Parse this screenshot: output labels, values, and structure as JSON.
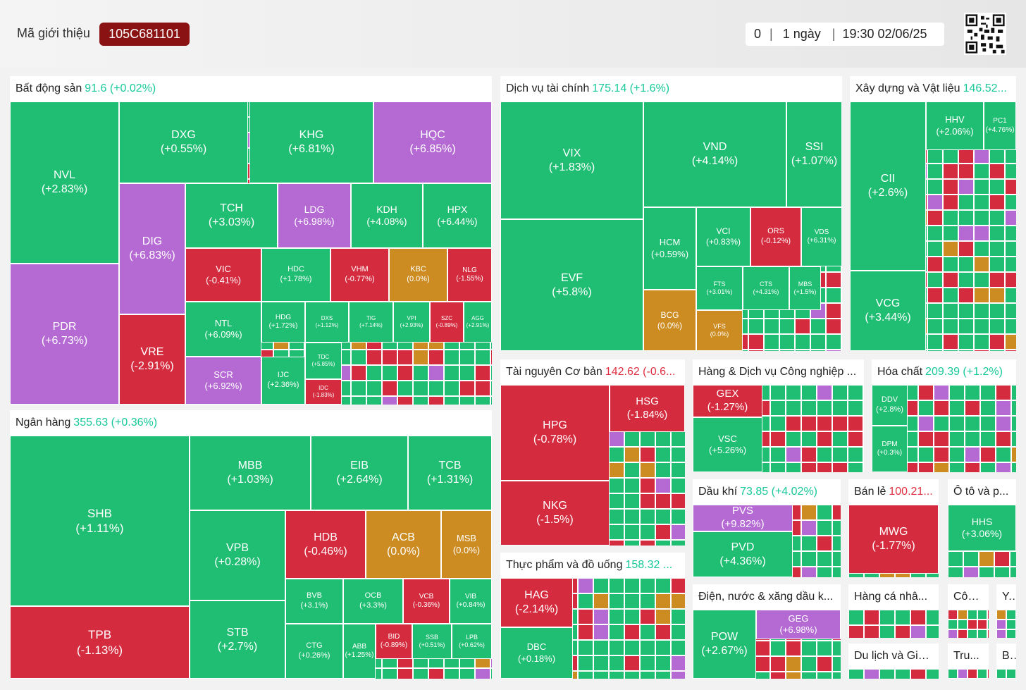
{
  "header": {
    "ref_label": "Mã giới thiệu",
    "ref_code": "105C681101",
    "count": "0",
    "period": "1 ngày",
    "datetime": "19:30 02/06/25"
  },
  "colors": {
    "up": "#1fbe73",
    "down": "#d42b3e",
    "ceiling": "#b569d3",
    "reference": "#cd8c22",
    "floor": "#4b90e0"
  },
  "sectors": [
    {
      "name": "Bất động sản",
      "value": "91.6 (+0.02%)",
      "dir": "up",
      "tiles": [
        {
          "t": "NVL",
          "v": "(+2.83%)",
          "c": "g"
        },
        {
          "t": "PDR",
          "v": "(+6.73%)",
          "c": "p"
        },
        {
          "t": "DXG",
          "v": "(+0.55%)",
          "c": "g"
        },
        {
          "t": "KHG",
          "v": "(+6.81%)",
          "c": "g"
        },
        {
          "t": "HQC",
          "v": "(+6.85%)",
          "c": "p"
        },
        {
          "t": "DIG",
          "v": "(+6.83%)",
          "c": "p"
        },
        {
          "t": "VRE",
          "v": "(-2.91%)",
          "c": "r"
        },
        {
          "t": "TCH",
          "v": "(+3.03%)",
          "c": "g"
        },
        {
          "t": "LDG",
          "v": "(+6.98%)",
          "c": "p"
        },
        {
          "t": "KDH",
          "v": "(+4.08%)",
          "c": "g"
        },
        {
          "t": "HPX",
          "v": "(+6.44%)",
          "c": "g"
        },
        {
          "t": "VIC",
          "v": "(-0.41%)",
          "c": "r"
        },
        {
          "t": "HDC",
          "v": "(+1.78%)",
          "c": "g"
        },
        {
          "t": "VHM",
          "v": "(-0.77%)",
          "c": "r"
        },
        {
          "t": "KBC",
          "v": "(0.0%)",
          "c": "y"
        },
        {
          "t": "NLG",
          "v": "(-1.55%)",
          "c": "r"
        },
        {
          "t": "NTL",
          "v": "(+6.09%)",
          "c": "g"
        },
        {
          "t": "HDG",
          "v": "(+1.72%)",
          "c": "g"
        },
        {
          "t": "DXS",
          "v": "(+1.12%)",
          "c": "g"
        },
        {
          "t": "TIG",
          "v": "(+7.14%)",
          "c": "g"
        },
        {
          "t": "VPI",
          "v": "(+2.93%)",
          "c": "g"
        },
        {
          "t": "SZC",
          "v": "(-0.89%)",
          "c": "r"
        },
        {
          "t": "AGG",
          "v": "(+2.91%)",
          "c": "g"
        },
        {
          "t": "SCR",
          "v": "(+6.92%)",
          "c": "p"
        },
        {
          "t": "IJC",
          "v": "(+2.36%)",
          "c": "g"
        },
        {
          "t": "TDC",
          "v": "(+5.85%)",
          "c": "g"
        },
        {
          "t": "IDC",
          "v": "(-1.83%)",
          "c": "r"
        }
      ]
    },
    {
      "name": "Ngân hàng",
      "value": "355.63 (+0.36%)",
      "dir": "up",
      "tiles": [
        {
          "t": "SHB",
          "v": "(+1.11%)",
          "c": "g"
        },
        {
          "t": "TPB",
          "v": "(-1.13%)",
          "c": "r"
        },
        {
          "t": "MBB",
          "v": "(+1.03%)",
          "c": "g"
        },
        {
          "t": "EIB",
          "v": "(+2.64%)",
          "c": "g"
        },
        {
          "t": "TCB",
          "v": "(+1.31%)",
          "c": "g"
        },
        {
          "t": "VPB",
          "v": "(+0.28%)",
          "c": "g"
        },
        {
          "t": "STB",
          "v": "(+2.7%)",
          "c": "g"
        },
        {
          "t": "HDB",
          "v": "(-0.46%)",
          "c": "r"
        },
        {
          "t": "ACB",
          "v": "(0.0%)",
          "c": "y"
        },
        {
          "t": "MSB",
          "v": "(0.0%)",
          "c": "y"
        },
        {
          "t": "BVB",
          "v": "(+3.1%)",
          "c": "g"
        },
        {
          "t": "OCB",
          "v": "(+3.3%)",
          "c": "g"
        },
        {
          "t": "VCB",
          "v": "(-0.36%)",
          "c": "r"
        },
        {
          "t": "VIB",
          "v": "(+0.84%)",
          "c": "g"
        },
        {
          "t": "CTG",
          "v": "(+0.26%)",
          "c": "g"
        },
        {
          "t": "ABB",
          "v": "(+1.25%)",
          "c": "g"
        },
        {
          "t": "BID",
          "v": "(-0.89%)",
          "c": "r"
        },
        {
          "t": "SSB",
          "v": "(+0.51%)",
          "c": "g"
        },
        {
          "t": "LPB",
          "v": "(+0.62%)",
          "c": "g"
        }
      ]
    },
    {
      "name": "Dịch vụ tài chính",
      "value": "175.14 (+1.6%)",
      "dir": "up",
      "tiles": [
        {
          "t": "VIX",
          "v": "(+1.83%)",
          "c": "g"
        },
        {
          "t": "EVF",
          "v": "(+5.8%)",
          "c": "g"
        },
        {
          "t": "VND",
          "v": "(+4.14%)",
          "c": "g"
        },
        {
          "t": "SSI",
          "v": "(+1.07%)",
          "c": "g"
        },
        {
          "t": "HCM",
          "v": "(+0.59%)",
          "c": "g"
        },
        {
          "t": "BCG",
          "v": "(0.0%)",
          "c": "y"
        },
        {
          "t": "VCI",
          "v": "(+0.83%)",
          "c": "g"
        },
        {
          "t": "ORS",
          "v": "(-0.12%)",
          "c": "r"
        },
        {
          "t": "VDS",
          "v": "(+6.31%)",
          "c": "g"
        },
        {
          "t": "FTS",
          "v": "(+3.01%)",
          "c": "g"
        },
        {
          "t": "CTS",
          "v": "(+4.31%)",
          "c": "g"
        },
        {
          "t": "MBS",
          "v": "(+1.5%)",
          "c": "g"
        },
        {
          "t": "VFS",
          "v": "(0.0%)",
          "c": "y"
        }
      ]
    },
    {
      "name": "Xây dựng và Vật liệu",
      "value": "146.52...",
      "dir": "up",
      "tiles": [
        {
          "t": "CII",
          "v": "(+2.6%)",
          "c": "g"
        },
        {
          "t": "VCG",
          "v": "(+3.44%)",
          "c": "g"
        },
        {
          "t": "HHV",
          "v": "(+2.06%)",
          "c": "g"
        },
        {
          "t": "PC1",
          "v": "(+4.76%)",
          "c": "g"
        }
      ]
    },
    {
      "name": "Tài nguyên Cơ bản",
      "value": "142.62 (-0.6...",
      "dir": "dn",
      "tiles": [
        {
          "t": "HPG",
          "v": "(-0.78%)",
          "c": "r"
        },
        {
          "t": "NKG",
          "v": "(-1.5%)",
          "c": "r"
        },
        {
          "t": "HSG",
          "v": "(-1.84%)",
          "c": "r"
        }
      ]
    },
    {
      "name": "Hàng & Dịch vụ Công nghiệp ...",
      "value": "",
      "dir": "up",
      "tiles": [
        {
          "t": "GEX",
          "v": "(-1.27%)",
          "c": "r"
        },
        {
          "t": "VSC",
          "v": "(+5.26%)",
          "c": "g"
        }
      ]
    },
    {
      "name": "Hóa chất",
      "value": "209.39 (+1.2%)",
      "dir": "up",
      "tiles": [
        {
          "t": "DDV",
          "v": "(+2.8%)",
          "c": "g"
        },
        {
          "t": "DPM",
          "v": "(+0.3%)",
          "c": "g"
        }
      ]
    },
    {
      "name": "Thực phẩm và đồ uống",
      "value": "158.32 ...",
      "dir": "up",
      "tiles": [
        {
          "t": "HAG",
          "v": "(-2.14%)",
          "c": "r"
        },
        {
          "t": "DBC",
          "v": "(+0.18%)",
          "c": "g"
        }
      ]
    },
    {
      "name": "Dầu khí",
      "value": "73.85 (+4.02%)",
      "dir": "up",
      "tiles": [
        {
          "t": "PVS",
          "v": "(+9.82%)",
          "c": "p"
        },
        {
          "t": "PVD",
          "v": "(+4.36%)",
          "c": "g"
        }
      ]
    },
    {
      "name": "Bán lẻ",
      "value": "100.21...",
      "dir": "dn",
      "tiles": [
        {
          "t": "MWG",
          "v": "(-1.77%)",
          "c": "r"
        }
      ]
    },
    {
      "name": "Ô tô và p...",
      "value": "",
      "dir": "up",
      "tiles": [
        {
          "t": "HHS",
          "v": "(+3.06%)",
          "c": "g"
        }
      ]
    },
    {
      "name": "Điện, nước & xăng dầu k...",
      "value": "",
      "dir": "up",
      "tiles": [
        {
          "t": "POW",
          "v": "(+2.67%)",
          "c": "g"
        },
        {
          "t": "GEG",
          "v": "(+6.98%)",
          "c": "p"
        }
      ]
    },
    {
      "name": "Hàng cá nhâ...",
      "value": "",
      "dir": "up",
      "tiles": []
    },
    {
      "name": "Côn...",
      "value": "",
      "dir": "up",
      "tiles": []
    },
    {
      "name": "Y...",
      "value": "",
      "dir": "up",
      "tiles": []
    },
    {
      "name": "Du lịch và Giả...",
      "value": "",
      "dir": "up",
      "tiles": []
    },
    {
      "name": "Tru...",
      "value": "",
      "dir": "up",
      "tiles": []
    },
    {
      "name": "B...",
      "value": "",
      "dir": "up",
      "tiles": []
    }
  ]
}
